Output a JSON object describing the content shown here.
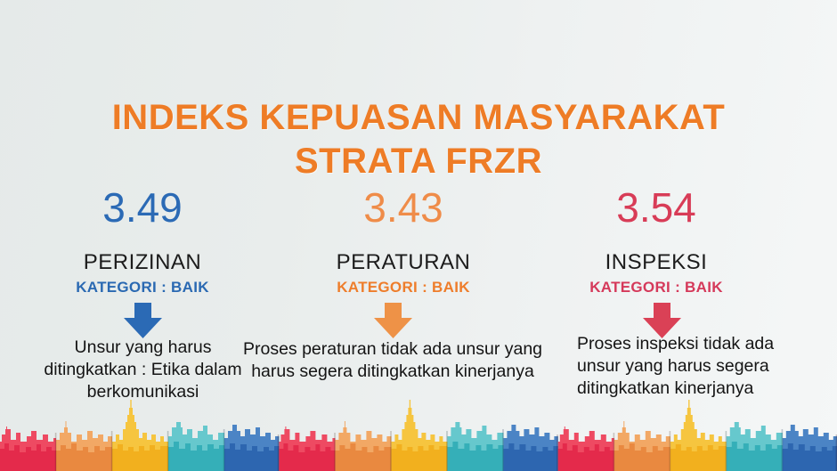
{
  "title": {
    "line1": "INDEKS KEPUASAN MASYARAKAT",
    "line2": "STRATA FRZR",
    "color": "#ee7c26"
  },
  "columns": [
    {
      "score": "3.49",
      "label": "PERIZINAN",
      "category": "KATEGORI : BAIK",
      "note": "Unsur yang harus ditingkatkan : Etika dalam berkomunikasi",
      "score_color": "#2b6ab5",
      "accent_color": "#2a69b2",
      "arrow_color": "#2b6ab5",
      "arrow_icon": "down-arrow"
    },
    {
      "score": "3.43",
      "label": "PERATURAN",
      "category": "KATEGORI : BAIK",
      "note": "Proses peraturan tidak ada unsur yang harus segera ditingkatkan kinerjanya",
      "score_color": "#ef8c49",
      "accent_color": "#ee7d2b",
      "arrow_color": "#ee9247",
      "arrow_icon": "down-arrow"
    },
    {
      "score": "3.54",
      "label": "INSPEKSI",
      "category": "KATEGORI : BAIK",
      "note": "Proses inspeksi tidak ada unsur yang harus segera ditingkatkan kinerjanya",
      "score_color": "#d83c57",
      "accent_color": "#d5395a",
      "arrow_color": "#da4156",
      "arrow_icon": "down-arrow"
    }
  ],
  "skyline": {
    "description": "paper-cut city skyline, repeating red-orange-yellow-teal-blue clusters with spire towers",
    "colors": {
      "red": "#e42a4b",
      "red_light": "#ee4a62",
      "orange": "#e98940",
      "orange_light": "#f2a865",
      "yellow": "#f2b01e",
      "yellow_light": "#f6c53f",
      "teal": "#35afb8",
      "teal_light": "#66c8cd",
      "blue": "#2d66b0",
      "blue_light": "#4b84c5"
    }
  }
}
